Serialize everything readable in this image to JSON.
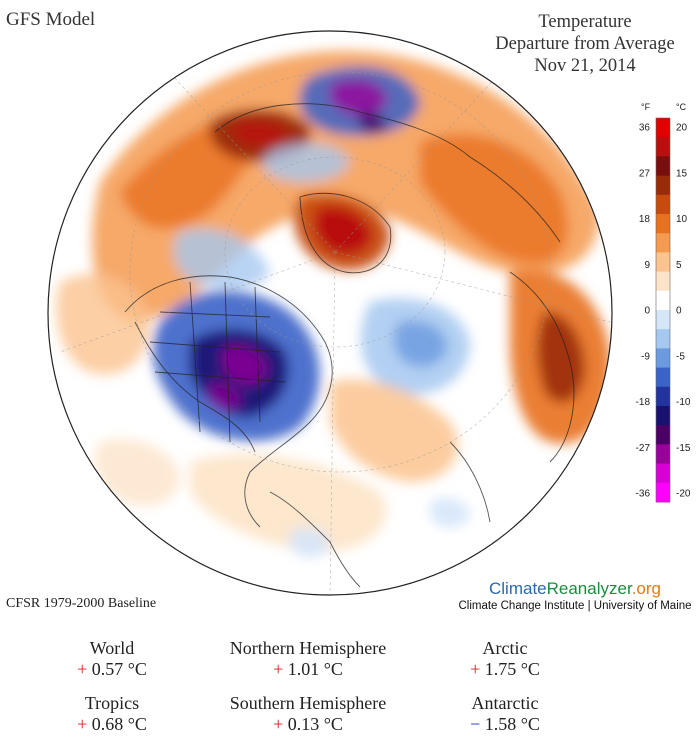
{
  "header": {
    "model": "GFS Model",
    "title_line1": "Temperature",
    "title_line2": "Departure from Average",
    "date": "Nov 21, 2014"
  },
  "legend": {
    "unit_f": "°F",
    "unit_c": "°C",
    "f_ticks": [
      "36",
      "27",
      "18",
      "9",
      "0",
      "-9",
      "-18",
      "-27",
      "-36"
    ],
    "c_ticks": [
      "20",
      "15",
      "10",
      "5",
      "0",
      "-5",
      "-10",
      "-15",
      "-20"
    ],
    "colors": [
      "#ff00ff",
      "#d600d6",
      "#9a009a",
      "#4b0066",
      "#1a1070",
      "#2233a0",
      "#3a62c8",
      "#6b9ae0",
      "#a6c8f0",
      "#d5e6f9",
      "#ffffff",
      "#fde4c8",
      "#fbc38e",
      "#f59a4f",
      "#e8711e",
      "#c74b0c",
      "#9a2a08",
      "#7a0d0d",
      "#b80f0f",
      "#e00000"
    ]
  },
  "footer": {
    "baseline": "CFSR 1979-2000 Baseline",
    "brand_part1": "Climate",
    "brand_part2": "Reanalyzer",
    "brand_part3": ".org",
    "institute": "Climate Change Institute | University of Maine"
  },
  "stats": [
    {
      "label": "World",
      "sign": "+",
      "value": "0.57 °C"
    },
    {
      "label": "Northern Hemisphere",
      "sign": "+",
      "value": "1.01 °C"
    },
    {
      "label": "Arctic",
      "sign": "+",
      "value": "1.75 °C"
    },
    {
      "label": "Tropics",
      "sign": "+",
      "value": "0.68 °C"
    },
    {
      "label": "Southern Hemisphere",
      "sign": "+",
      "value": "0.13 °C"
    },
    {
      "label": "Antarctic",
      "sign": "−",
      "value": "1.58 °C"
    }
  ]
}
